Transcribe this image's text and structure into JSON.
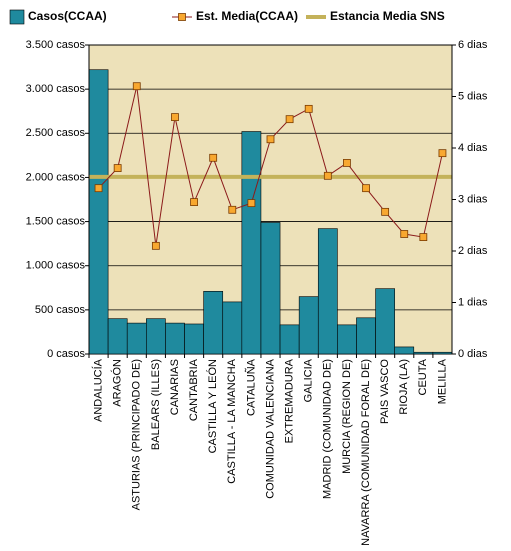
{
  "chart_data": {
    "type": "bar",
    "categories": [
      "ANDALUCÍA",
      "ARAGÓN",
      "ASTURIAS (PRINCIPADO DE)",
      "BALEARS (ILLES)",
      "CANARIAS",
      "CANTABRIA",
      "CASTILLA Y LEÓN",
      "CASTILLA - LA MANCHA",
      "CATALUÑA",
      "COMUNIDAD VALENCIANA",
      "EXTREMADURA",
      "GALICIA",
      "MADRID (COMUNIDAD DE)",
      "MURCIA (REGION DE)",
      "NAVARRA (COMUNIDAD FORAL DE)",
      "PAIS VASCO",
      "RIOJA (LA)",
      "CEUTA",
      "MELILLA"
    ],
    "series": [
      {
        "name": "Casos(CCAA)",
        "type": "bar",
        "color": "#1f8a9e",
        "values": [
          3220,
          400,
          350,
          400,
          350,
          340,
          710,
          590,
          2520,
          1490,
          330,
          650,
          1420,
          330,
          410,
          740,
          80,
          20,
          20
        ]
      },
      {
        "name": "Est. Media(CCAA)",
        "type": "line",
        "axis": "y2",
        "color": "#8b1a1a",
        "marker_color": "#f8a830",
        "values": [
          3.22,
          3.61,
          5.2,
          2.1,
          4.6,
          2.95,
          3.81,
          2.8,
          2.93,
          4.17,
          4.56,
          4.76,
          3.46,
          3.71,
          3.22,
          2.76,
          2.33,
          2.27,
          3.9
        ]
      }
    ],
    "reference_line": {
      "name": "Estancia Media SNS",
      "axis": "y2",
      "color": "#c4b25a",
      "value": 3.44
    },
    "ylim": [
      0,
      3500
    ],
    "yticks": [
      {
        "value": 0,
        "label": "0 casos"
      },
      {
        "value": 500,
        "label": "500 casos"
      },
      {
        "value": 1000,
        "label": "1.000 casos"
      },
      {
        "value": 1500,
        "label": "1.500 casos"
      },
      {
        "value": 2000,
        "label": "2.000 casos"
      },
      {
        "value": 2500,
        "label": "2.500 casos"
      },
      {
        "value": 3000,
        "label": "3.000 casos"
      },
      {
        "value": 3500,
        "label": "3.500 casos"
      }
    ],
    "y2lim": [
      0,
      6
    ],
    "y2ticks": [
      {
        "value": 0,
        "label": "0 dias"
      },
      {
        "value": 1,
        "label": "1 dias"
      },
      {
        "value": 2,
        "label": "2 dias"
      },
      {
        "value": 3,
        "label": "3 dias"
      },
      {
        "value": 4,
        "label": "4 dias"
      },
      {
        "value": 5,
        "label": "5 dias"
      },
      {
        "value": 6,
        "label": "6 dias"
      }
    ],
    "grid": true,
    "background": "#ede1b9",
    "legend": "top"
  }
}
